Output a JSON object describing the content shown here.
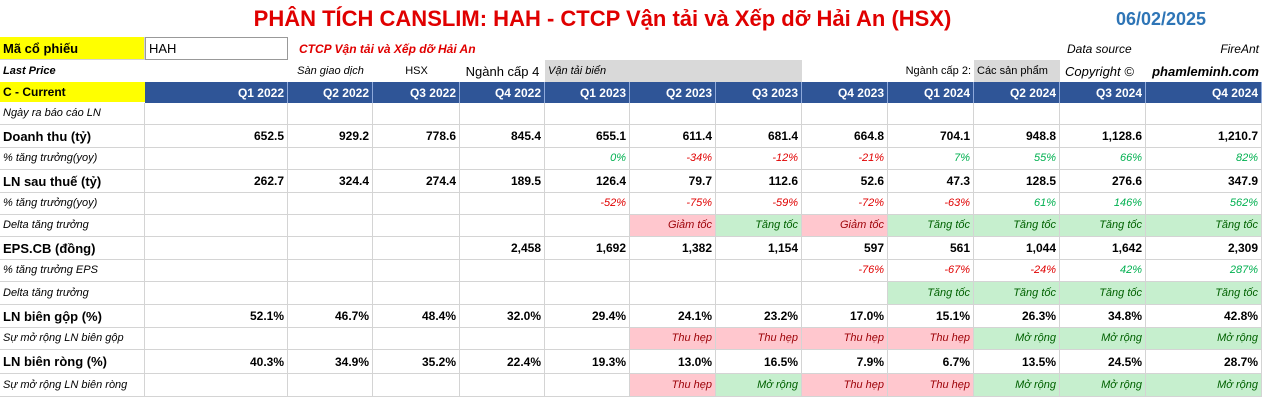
{
  "header": {
    "title": "PHÂN TÍCH CANSLIM: HAH - CTCP Vận tải và Xếp dỡ Hải An (HSX)",
    "date": "06/02/2025"
  },
  "info": {
    "ticker_label": "Mã cổ phiếu",
    "ticker": "HAH",
    "company": "CTCP Vận tải và Xếp dỡ Hải An",
    "source_label": "Data source",
    "source": "FireAnt",
    "price_label": "Last Price",
    "exchange_label": "Sàn giao dịch",
    "exchange": "HSX",
    "industry4_label": "Ngành cấp 4",
    "industry4": "Vận tải biển",
    "industry2_label": "Ngành cấp 2:",
    "industry2": "Các sản phẩm",
    "copyright_label": "Copyright ©",
    "copyright": "phamleminh.com"
  },
  "table": {
    "corner": "C - Current",
    "columns": [
      "Q1 2022",
      "Q2 2022",
      "Q3 2022",
      "Q4 2022",
      "Q1 2023",
      "Q2 2023",
      "Q3 2023",
      "Q4 2023",
      "Q1 2024",
      "Q2 2024",
      "Q3 2024",
      "Q4 2024"
    ],
    "rows": [
      {
        "label": "Ngày ra báo cáo LN",
        "bold": false,
        "cells": [
          null,
          null,
          null,
          null,
          null,
          null,
          null,
          null,
          null,
          null,
          null,
          null
        ]
      },
      {
        "label": "Doanh thu (tỷ)",
        "bold": true,
        "cells": [
          "652.5",
          "929.2",
          "778.6",
          "845.4",
          "655.1",
          "611.4",
          "681.4",
          "664.8",
          "704.1",
          "948.8",
          "1,128.6",
          "1,210.7"
        ]
      },
      {
        "label": "% tăng trưởng(yoy)",
        "bold": false,
        "cells": [
          null,
          null,
          null,
          null,
          "0%",
          "-34%",
          "-12%",
          "-21%",
          "7%",
          "55%",
          "66%",
          "82%"
        ]
      },
      {
        "label": "LN sau thuế (tỷ)",
        "bold": true,
        "cells": [
          "262.7",
          "324.4",
          "274.4",
          "189.5",
          "126.4",
          "79.7",
          "112.6",
          "52.6",
          "47.3",
          "128.5",
          "276.6",
          "347.9"
        ]
      },
      {
        "label": "% tăng trưởng(yoy)",
        "bold": false,
        "cells": [
          null,
          null,
          null,
          null,
          "-52%",
          "-75%",
          "-59%",
          "-72%",
          "-63%",
          "61%",
          "146%",
          "562%"
        ]
      },
      {
        "label": "Delta tăng trưởng",
        "bold": false,
        "cells": [
          null,
          null,
          null,
          null,
          null,
          "Giảm tốc",
          "Tăng tốc",
          "Giảm tốc",
          "Tăng tốc",
          "Tăng tốc",
          "Tăng tốc",
          "Tăng tốc"
        ],
        "fills": [
          null,
          null,
          null,
          null,
          null,
          "#ffc7ce",
          "#c6efce",
          "#ffc7ce",
          "#c6efce",
          "#c6efce",
          "#c6efce",
          "#c6efce"
        ]
      },
      {
        "label": "EPS.CB (đồng)",
        "bold": true,
        "cells": [
          null,
          null,
          null,
          "2,458",
          "1,692",
          "1,382",
          "1,154",
          "597",
          "561",
          "1,044",
          "1,642",
          "2,309"
        ]
      },
      {
        "label": "% tăng trưởng EPS",
        "bold": false,
        "cells": [
          null,
          null,
          null,
          null,
          null,
          null,
          null,
          "-76%",
          "-67%",
          "-24%",
          "42%",
          "287%"
        ]
      },
      {
        "label": "Delta tăng trưởng",
        "bold": false,
        "cells": [
          null,
          null,
          null,
          null,
          null,
          null,
          null,
          null,
          "Tăng tốc",
          "Tăng tốc",
          "Tăng tốc",
          "Tăng tốc"
        ],
        "fills": [
          null,
          null,
          null,
          null,
          null,
          null,
          null,
          null,
          "#c6efce",
          "#c6efce",
          "#c6efce",
          "#c6efce"
        ]
      },
      {
        "label": "LN biên gộp (%)",
        "bold": true,
        "cells": [
          "52.1%",
          "46.7%",
          "48.4%",
          "32.0%",
          "29.4%",
          "24.1%",
          "23.2%",
          "17.0%",
          "15.1%",
          "26.3%",
          "34.8%",
          "42.8%"
        ]
      },
      {
        "label": "Sự mở rộng LN biên gộp",
        "bold": false,
        "cells": [
          null,
          null,
          null,
          null,
          null,
          "Thu hẹp",
          "Thu hẹp",
          "Thu hẹp",
          "Thu hẹp",
          "Mở rộng",
          "Mở rộng",
          "Mở rộng"
        ],
        "fills": [
          null,
          null,
          null,
          null,
          null,
          "#ffc7ce",
          "#ffc7ce",
          "#ffc7ce",
          "#ffc7ce",
          "#c6efce",
          "#c6efce",
          "#c6efce"
        ]
      },
      {
        "label": "LN biên ròng (%)",
        "bold": true,
        "cells": [
          "40.3%",
          "34.9%",
          "35.2%",
          "22.4%",
          "19.3%",
          "13.0%",
          "16.5%",
          "7.9%",
          "6.7%",
          "13.5%",
          "24.5%",
          "28.7%"
        ]
      },
      {
        "label": "Sự mở rộng LN biên ròng",
        "bold": false,
        "cells": [
          null,
          null,
          null,
          null,
          null,
          "Thu hẹp",
          "Mở rộng",
          "Thu hẹp",
          "Thu hẹp",
          "Mở rộng",
          "Mở rộng",
          "Mở rộng"
        ],
        "fills": [
          null,
          null,
          null,
          null,
          null,
          "#ffc7ce",
          "#c6efce",
          "#ffc7ce",
          "#ffc7ce",
          "#c6efce",
          "#c6efce",
          "#c6efce"
        ]
      }
    ]
  }
}
